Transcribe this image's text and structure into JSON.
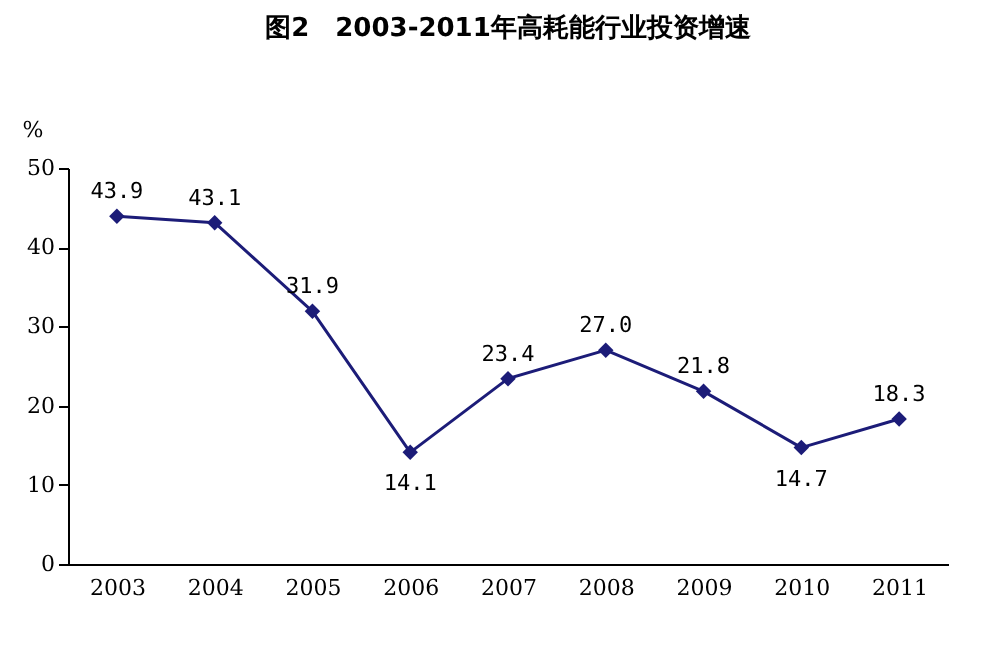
{
  "chart_data": {
    "type": "line",
    "title": "图2　2003-2011年高耗能行业投资增速",
    "ylabel": "%",
    "categories": [
      "2003",
      "2004",
      "2005",
      "2006",
      "2007",
      "2008",
      "2009",
      "2010",
      "2011"
    ],
    "series": [
      {
        "color": "#1c1c78",
        "values": [
          43.9,
          43.1,
          31.9,
          14.1,
          23.4,
          27.0,
          21.8,
          14.7,
          18.3
        ],
        "value_labels": [
          "43.9",
          "43.1",
          "31.9",
          "14.1",
          "23.4",
          "27.0",
          "21.8",
          "14.7",
          "18.3"
        ]
      }
    ],
    "ylim": [
      0,
      50
    ],
    "yticks": [
      0,
      10,
      20,
      30,
      40,
      50
    ],
    "marker": "diamond",
    "line_style": "solid",
    "grid": false,
    "legend": false
  }
}
